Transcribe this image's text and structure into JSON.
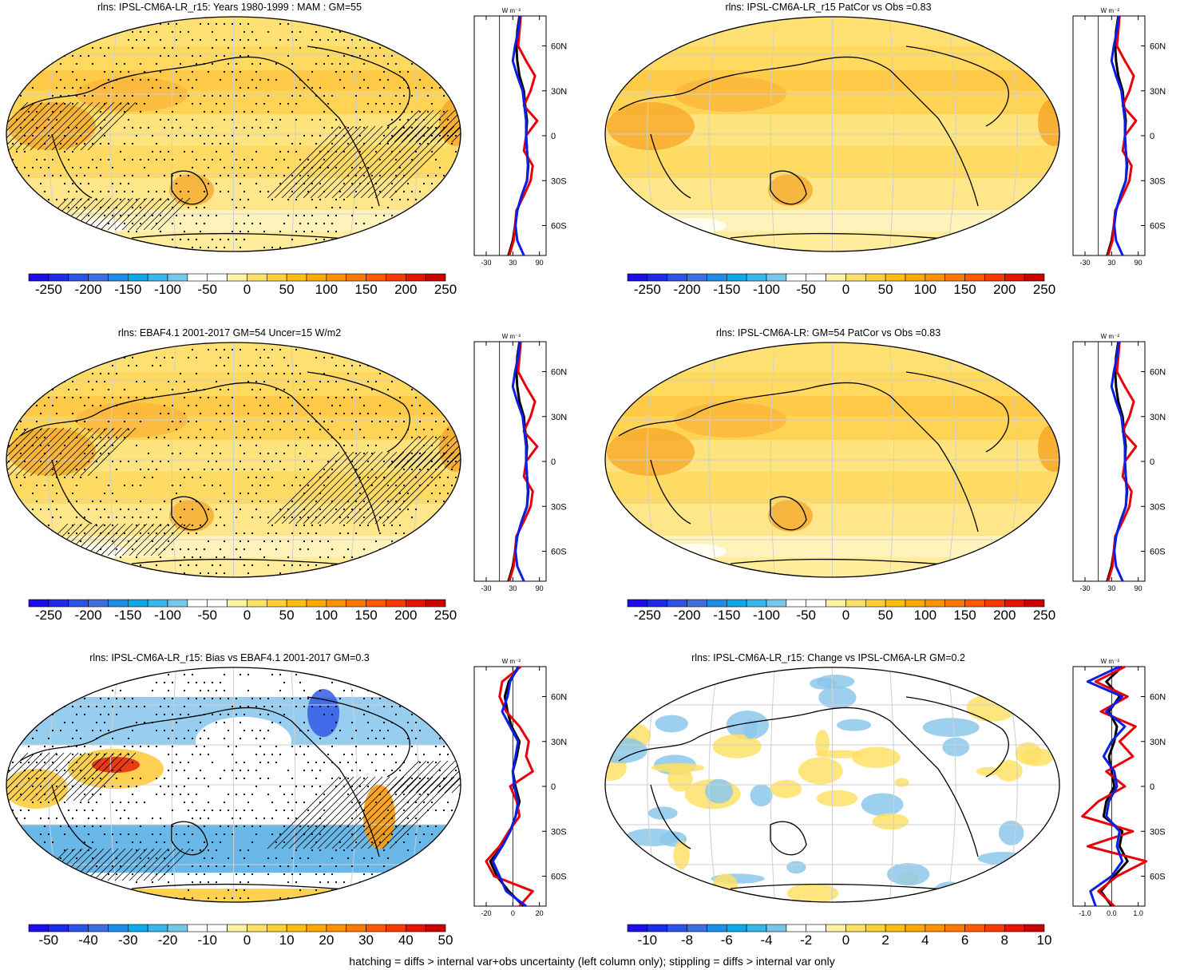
{
  "footer": "hatching = diffs > internal var+obs uncertainty (left column only); stippling = diffs > internal var only",
  "side_units": "W m⁻²",
  "lat_ticks": [
    "60N",
    "30N",
    "0",
    "30S",
    "60S"
  ],
  "colors": {
    "line_obs": "#000000",
    "line_model": "#e8000b",
    "line_blue": "#0a1ee6"
  },
  "panels": [
    {
      "id": "p1",
      "title": "rlns: IPSL-CM6A-LR_r15: Years 1980-1999 : MAM : GM=55",
      "colorbar_labels": [
        "-250",
        "-200",
        "-150",
        "-100",
        "-50",
        "0",
        "50",
        "100",
        "150",
        "200",
        "250"
      ],
      "colorbar_colors": [
        "#1c0ee8",
        "#1d2ce8",
        "#2c52e6",
        "#3d6ee2",
        "#1d8ee8",
        "#0ca8e8",
        "#36b6ea",
        "#76c6ea",
        "#ffffff",
        "#ffffff",
        "#fff2a0",
        "#ffe066",
        "#ffd036",
        "#ffbc12",
        "#ffa800",
        "#ff9000",
        "#ff7800",
        "#ff5a00",
        "#f83a00",
        "#e81400",
        "#cc0000"
      ],
      "side_xticks": [
        "-30",
        "30",
        "90"
      ],
      "style": "abs",
      "hatch": true,
      "stipple": true
    },
    {
      "id": "p2",
      "title": "rlns: IPSL-CM6A-LR_r15 PatCor vs Obs =0.83",
      "colorbar_labels": [
        "-250",
        "-200",
        "-150",
        "-100",
        "-50",
        "0",
        "50",
        "100",
        "150",
        "200",
        "250"
      ],
      "colorbar_colors": [
        "#1c0ee8",
        "#1d2ce8",
        "#2c52e6",
        "#3d6ee2",
        "#1d8ee8",
        "#0ca8e8",
        "#36b6ea",
        "#76c6ea",
        "#ffffff",
        "#ffffff",
        "#fff2a0",
        "#ffe066",
        "#ffd036",
        "#ffbc12",
        "#ffa800",
        "#ff9000",
        "#ff7800",
        "#ff5a00",
        "#f83a00",
        "#e81400",
        "#cc0000"
      ],
      "side_xticks": [
        "-30",
        "30",
        "90"
      ],
      "style": "abs",
      "hatch": false,
      "stipple": false
    },
    {
      "id": "p3",
      "title": "rlns: EBAF4.1 2001-2017 GM=54 Uncer=15 W/m2",
      "colorbar_labels": [
        "-250",
        "-200",
        "-150",
        "-100",
        "-50",
        "0",
        "50",
        "100",
        "150",
        "200",
        "250"
      ],
      "colorbar_colors": [
        "#1c0ee8",
        "#1d2ce8",
        "#2c52e6",
        "#3d6ee2",
        "#1d8ee8",
        "#0ca8e8",
        "#36b6ea",
        "#76c6ea",
        "#ffffff",
        "#ffffff",
        "#fff2a0",
        "#ffe066",
        "#ffd036",
        "#ffbc12",
        "#ffa800",
        "#ff9000",
        "#ff7800",
        "#ff5a00",
        "#f83a00",
        "#e81400",
        "#cc0000"
      ],
      "side_xticks": [
        "-30",
        "30",
        "90"
      ],
      "style": "abs",
      "hatch": true,
      "stipple": true
    },
    {
      "id": "p4",
      "title": "rlns: IPSL-CM6A-LR: GM=54 PatCor vs Obs =0.83",
      "colorbar_labels": [
        "-250",
        "-200",
        "-150",
        "-100",
        "-50",
        "0",
        "50",
        "100",
        "150",
        "200",
        "250"
      ],
      "colorbar_colors": [
        "#1c0ee8",
        "#1d2ce8",
        "#2c52e6",
        "#3d6ee2",
        "#1d8ee8",
        "#0ca8e8",
        "#36b6ea",
        "#76c6ea",
        "#ffffff",
        "#ffffff",
        "#fff2a0",
        "#ffe066",
        "#ffd036",
        "#ffbc12",
        "#ffa800",
        "#ff9000",
        "#ff7800",
        "#ff5a00",
        "#f83a00",
        "#e81400",
        "#cc0000"
      ],
      "side_xticks": [
        "-30",
        "30",
        "90"
      ],
      "style": "abs",
      "hatch": false,
      "stipple": false
    },
    {
      "id": "p5",
      "title": "rlns: IPSL-CM6A-LR_r15: Bias vs EBAF4.1 2001-2017 GM=0.3",
      "colorbar_labels": [
        "-50",
        "-40",
        "-30",
        "-20",
        "-10",
        "0",
        "10",
        "20",
        "30",
        "40",
        "50"
      ],
      "colorbar_colors": [
        "#1c0ee8",
        "#1d2ce8",
        "#2c52e6",
        "#3d6ee2",
        "#1d8ee8",
        "#0ca8e8",
        "#36b6ea",
        "#76c6ea",
        "#ffffff",
        "#ffffff",
        "#fff2a0",
        "#ffe066",
        "#ffd036",
        "#ffbc12",
        "#ffa800",
        "#ff9000",
        "#ff7800",
        "#ff5a00",
        "#f83a00",
        "#e81400",
        "#cc0000"
      ],
      "side_xticks": [
        "-20",
        "0",
        "20"
      ],
      "style": "bias",
      "hatch": true,
      "stipple": true
    },
    {
      "id": "p6",
      "title": "rlns: IPSL-CM6A-LR_r15: Change vs IPSL-CM6A-LR GM=0.2",
      "colorbar_labels": [
        "-10",
        "-8",
        "-6",
        "-4",
        "-2",
        "0",
        "2",
        "4",
        "6",
        "8",
        "10"
      ],
      "colorbar_colors": [
        "#1c0ee8",
        "#1d2ce8",
        "#2c52e6",
        "#3d6ee2",
        "#1d8ee8",
        "#0ca8e8",
        "#36b6ea",
        "#76c6ea",
        "#ffffff",
        "#ffffff",
        "#fff2a0",
        "#ffe066",
        "#ffd036",
        "#ffbc12",
        "#ffa800",
        "#ff9000",
        "#ff7800",
        "#ff5a00",
        "#f83a00",
        "#e81400",
        "#cc0000"
      ],
      "side_xticks": [
        "-1.0",
        "0.0",
        "1.0"
      ],
      "style": "change",
      "hatch": false,
      "stipple": false
    }
  ],
  "chart_data": [
    {
      "type": "heatmap",
      "title": "rlns: IPSL-CM6A-LR_r15: Years 1980-1999 : MAM : GM=55",
      "projection": "Robinson",
      "colorbar_range": [
        -250,
        250
      ],
      "colorbar_ticks": [
        -250,
        -200,
        -150,
        -100,
        -50,
        0,
        50,
        100,
        150,
        200,
        250
      ],
      "zonal_mean_profile": {
        "x_ticks": [
          -30,
          30,
          90
        ],
        "y_ticks": [
          "60N",
          "30N",
          "0",
          "30S",
          "60S"
        ],
        "lat": [
          80,
          70,
          60,
          50,
          40,
          30,
          20,
          10,
          0,
          -10,
          -20,
          -30,
          -40,
          -50,
          -60,
          -70,
          -80
        ],
        "series": [
          {
            "color": "black",
            "values": [
              45,
              40,
              38,
              40,
              45,
              55,
              58,
              62,
              60,
              62,
              65,
              62,
              50,
              40,
              35,
              30,
              20
            ]
          },
          {
            "color": "red",
            "values": [
              48,
              45,
              42,
              60,
              80,
              70,
              55,
              85,
              60,
              55,
              75,
              70,
              55,
              38,
              35,
              32,
              22
            ]
          },
          {
            "color": "blue",
            "values": [
              46,
              42,
              35,
              30,
              40,
              52,
              56,
              60,
              60,
              62,
              64,
              62,
              50,
              40,
              36,
              40,
              55
            ]
          }
        ]
      }
    },
    {
      "type": "heatmap",
      "title": "rlns: IPSL-CM6A-LR_r15 PatCor vs Obs =0.83",
      "projection": "Robinson",
      "colorbar_range": [
        -250,
        250
      ],
      "colorbar_ticks": [
        -250,
        -200,
        -150,
        -100,
        -50,
        0,
        50,
        100,
        150,
        200,
        250
      ],
      "zonal_mean_profile": {
        "x_ticks": [
          -30,
          30,
          90
        ],
        "y_ticks": [
          "60N",
          "30N",
          "0",
          "30S",
          "60S"
        ],
        "lat": [
          80,
          70,
          60,
          50,
          40,
          30,
          20,
          10,
          0,
          -10,
          -20,
          -30,
          -40,
          -50,
          -60,
          -70,
          -80
        ],
        "series": [
          {
            "color": "black",
            "values": [
              45,
              40,
              38,
              40,
              45,
              55,
              58,
              62,
              60,
              62,
              65,
              62,
              50,
              40,
              35,
              30,
              20
            ]
          },
          {
            "color": "red",
            "values": [
              48,
              45,
              42,
              60,
              80,
              70,
              55,
              85,
              60,
              55,
              75,
              70,
              55,
              38,
              35,
              32,
              22
            ]
          },
          {
            "color": "blue",
            "values": [
              46,
              42,
              35,
              30,
              40,
              52,
              56,
              60,
              60,
              62,
              64,
              62,
              50,
              40,
              36,
              40,
              55
            ]
          }
        ]
      }
    },
    {
      "type": "heatmap",
      "title": "rlns: EBAF4.1 2001-2017 GM=54 Uncer=15 W/m2",
      "projection": "Robinson",
      "colorbar_range": [
        -250,
        250
      ],
      "colorbar_ticks": [
        -250,
        -200,
        -150,
        -100,
        -50,
        0,
        50,
        100,
        150,
        200,
        250
      ],
      "zonal_mean_profile": {
        "x_ticks": [
          -30,
          30,
          90
        ],
        "y_ticks": [
          "60N",
          "30N",
          "0",
          "30S",
          "60S"
        ],
        "lat": [
          80,
          70,
          60,
          50,
          40,
          30,
          20,
          10,
          0,
          -10,
          -20,
          -30,
          -40,
          -50,
          -60,
          -70,
          -80
        ],
        "series": [
          {
            "color": "black",
            "values": [
              45,
              40,
              38,
              40,
              45,
              55,
              58,
              62,
              60,
              62,
              65,
              62,
              50,
              40,
              35,
              30,
              20
            ]
          },
          {
            "color": "red",
            "values": [
              48,
              45,
              42,
              60,
              80,
              70,
              55,
              85,
              60,
              55,
              75,
              70,
              55,
              38,
              35,
              32,
              22
            ]
          },
          {
            "color": "blue",
            "values": [
              46,
              42,
              35,
              30,
              40,
              52,
              56,
              60,
              60,
              62,
              64,
              62,
              50,
              40,
              36,
              40,
              55
            ]
          }
        ]
      }
    },
    {
      "type": "heatmap",
      "title": "rlns: IPSL-CM6A-LR: GM=54 PatCor vs Obs =0.83",
      "projection": "Robinson",
      "colorbar_range": [
        -250,
        250
      ],
      "colorbar_ticks": [
        -250,
        -200,
        -150,
        -100,
        -50,
        0,
        50,
        100,
        150,
        200,
        250
      ],
      "zonal_mean_profile": {
        "x_ticks": [
          -30,
          30,
          90
        ],
        "y_ticks": [
          "60N",
          "30N",
          "0",
          "30S",
          "60S"
        ],
        "lat": [
          80,
          70,
          60,
          50,
          40,
          30,
          20,
          10,
          0,
          -10,
          -20,
          -30,
          -40,
          -50,
          -60,
          -70,
          -80
        ],
        "series": [
          {
            "color": "black",
            "values": [
              45,
              40,
              38,
              40,
              45,
              55,
              58,
              62,
              60,
              62,
              65,
              62,
              50,
              40,
              35,
              30,
              20
            ]
          },
          {
            "color": "red",
            "values": [
              48,
              45,
              42,
              60,
              80,
              70,
              55,
              85,
              60,
              55,
              75,
              70,
              55,
              38,
              35,
              32,
              22
            ]
          },
          {
            "color": "blue",
            "values": [
              46,
              42,
              35,
              30,
              40,
              52,
              56,
              60,
              60,
              62,
              64,
              62,
              50,
              40,
              36,
              40,
              55
            ]
          }
        ]
      }
    },
    {
      "type": "heatmap",
      "title": "rlns: IPSL-CM6A-LR_r15: Bias vs EBAF4.1 2001-2017 GM=0.3",
      "projection": "Robinson",
      "colorbar_range": [
        -50,
        50
      ],
      "colorbar_ticks": [
        -50,
        -40,
        -30,
        -20,
        -10,
        0,
        10,
        20,
        30,
        40,
        50
      ],
      "zonal_mean_profile": {
        "x_ticks": [
          -20,
          0,
          20
        ],
        "y_ticks": [
          "60N",
          "30N",
          "0",
          "30S",
          "60S"
        ],
        "lat": [
          80,
          70,
          60,
          50,
          40,
          30,
          20,
          10,
          0,
          -10,
          -20,
          -30,
          -40,
          -50,
          -60,
          -70,
          -80
        ],
        "series": [
          {
            "color": "black",
            "values": [
              5,
              -3,
              -6,
              -4,
              -1,
              5,
              3,
              0,
              2,
              5,
              2,
              -2,
              -8,
              -17,
              -12,
              -3,
              8
            ]
          },
          {
            "color": "red",
            "values": [
              6,
              -8,
              -10,
              -5,
              5,
              12,
              10,
              15,
              -2,
              3,
              5,
              -3,
              -10,
              -20,
              -14,
              15,
              5
            ]
          },
          {
            "color": "blue",
            "values": [
              4,
              -2,
              -4,
              -8,
              -2,
              4,
              2,
              0,
              1,
              4,
              2,
              -2,
              -8,
              -15,
              -10,
              -5,
              10
            ]
          }
        ]
      }
    },
    {
      "type": "heatmap",
      "title": "rlns: IPSL-CM6A-LR_r15: Change vs IPSL-CM6A-LR GM=0.2",
      "projection": "Robinson",
      "colorbar_range": [
        -10,
        10
      ],
      "colorbar_ticks": [
        -10,
        -8,
        -6,
        -4,
        -2,
        0,
        2,
        4,
        6,
        8,
        10
      ],
      "zonal_mean_profile": {
        "x_ticks": [
          -1.0,
          0.0,
          1.0
        ],
        "y_ticks": [
          "60N",
          "30N",
          "0",
          "30S",
          "60S"
        ],
        "lat": [
          80,
          70,
          60,
          50,
          40,
          30,
          20,
          10,
          0,
          -10,
          -20,
          -30,
          -40,
          -50,
          -60,
          -70,
          -80
        ],
        "series": [
          {
            "color": "black",
            "values": [
              0.4,
              -0.2,
              0.3,
              -0.1,
              0.2,
              0.1,
              -0.1,
              0.0,
              0.1,
              -0.2,
              -0.3,
              0.4,
              0.3,
              0.6,
              0.1,
              -0.4,
              0.0
            ]
          },
          {
            "color": "red",
            "values": [
              0.5,
              -0.6,
              0.6,
              -0.4,
              0.9,
              0.3,
              0.8,
              -0.2,
              0.5,
              -0.5,
              -1.1,
              0.8,
              -0.9,
              1.3,
              0.2,
              -0.5,
              0.1
            ]
          },
          {
            "color": "blue",
            "values": [
              0.3,
              -0.9,
              0.4,
              -0.2,
              0.5,
              0.0,
              -0.3,
              0.1,
              0.2,
              -0.1,
              -0.2,
              0.3,
              0.2,
              0.4,
              0.0,
              -0.8,
              -0.6
            ]
          }
        ]
      }
    }
  ]
}
